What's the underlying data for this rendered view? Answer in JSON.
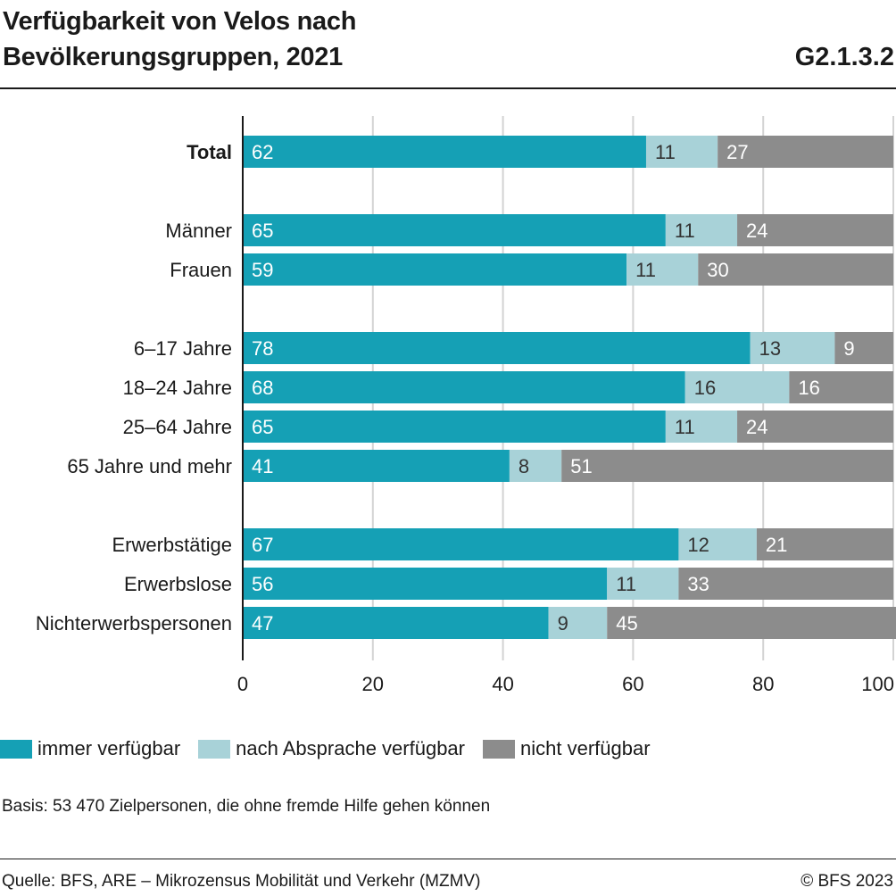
{
  "header": {
    "title_line1": "Verfügbarkeit von Velos nach",
    "title_line2": "Bevölkerungsgruppen, 2021",
    "chart_id": "G2.1.3.2"
  },
  "legend": [
    {
      "label": "immer verfügbar",
      "color": "#15a0b5"
    },
    {
      "label": "nach Absprache verfügbar",
      "color": "#a8d2d8"
    },
    {
      "label": "nicht verfügbar",
      "color": "#8c8c8c"
    }
  ],
  "basis": "Basis: 53 470 Zielpersonen, die ohne fremde Hilfe gehen können",
  "source": "Quelle: BFS, ARE – Mikrozensus Mobilität und Verkehr (MZMV)",
  "copyright": "© BFS 2023",
  "chart_data": {
    "type": "bar",
    "orientation": "horizontal",
    "stacked": true,
    "categories": [
      "Total",
      "Männer",
      "Frauen",
      "6–17 Jahre",
      "18–24 Jahre",
      "25–64 Jahre",
      "65 Jahre und mehr",
      "Erwerbstätige",
      "Erwerbslose",
      "Nichterwerbspersonen"
    ],
    "bold_categories": [
      "Total"
    ],
    "groups": [
      [
        "Total"
      ],
      [
        "Männer",
        "Frauen"
      ],
      [
        "6–17 Jahre",
        "18–24 Jahre",
        "25–64 Jahre",
        "65 Jahre und mehr"
      ],
      [
        "Erwerbstätige",
        "Erwerbslose",
        "Nichterwerbspersonen"
      ]
    ],
    "series": [
      {
        "name": "immer verfügbar",
        "color": "#15a0b5",
        "values": [
          62,
          65,
          59,
          78,
          68,
          65,
          41,
          67,
          56,
          47
        ]
      },
      {
        "name": "nach Absprache verfügbar",
        "color": "#a8d2d8",
        "values": [
          11,
          11,
          11,
          13,
          16,
          11,
          8,
          12,
          11,
          9
        ]
      },
      {
        "name": "nicht verfügbar",
        "color": "#8c8c8c",
        "values": [
          27,
          24,
          30,
          9,
          16,
          24,
          51,
          21,
          33,
          45
        ]
      }
    ],
    "xlim": [
      0,
      100
    ],
    "xticks": [
      0,
      20,
      40,
      60,
      80,
      100
    ],
    "grid": true,
    "legend_position": "bottom-left"
  }
}
